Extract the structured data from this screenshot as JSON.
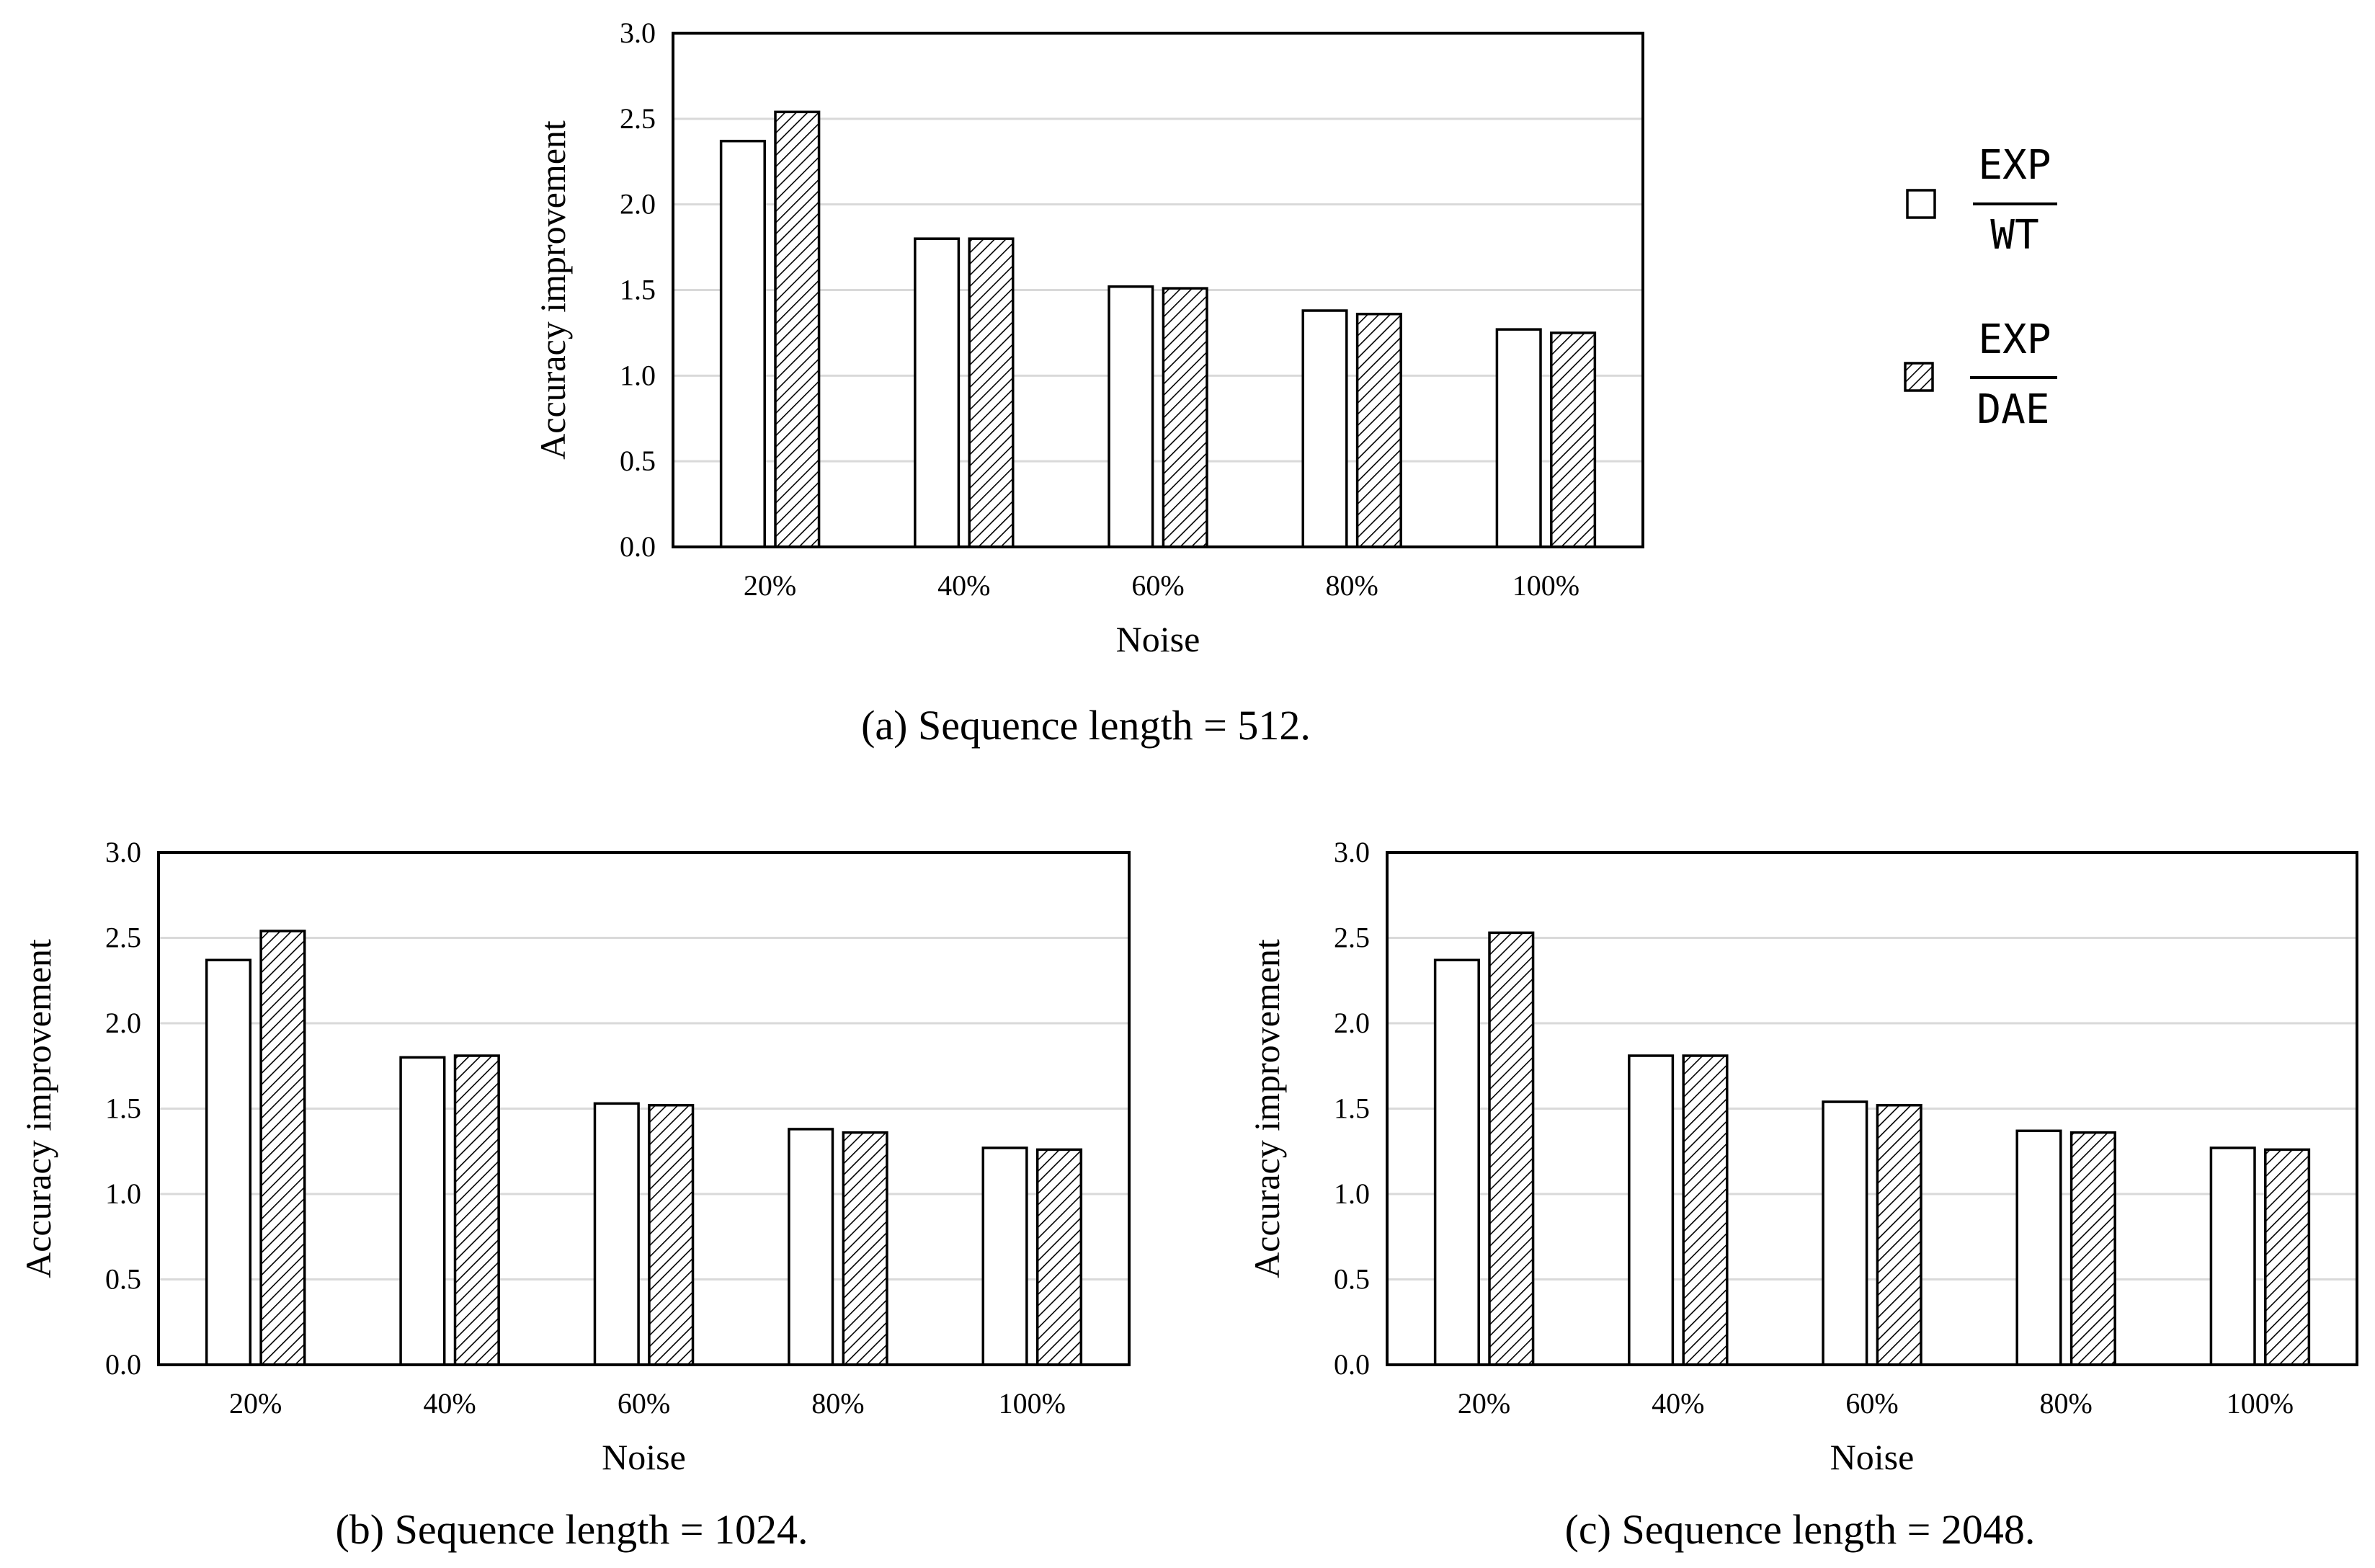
{
  "legend": [
    {
      "numerator": "EXP",
      "denominator": "WT",
      "fill": "white"
    },
    {
      "numerator": "EXP",
      "denominator": "DAE",
      "fill": "hatched"
    }
  ],
  "chart_data": [
    {
      "type": "bar",
      "caption": "(a) Sequence length = 512.",
      "xlabel": "Noise",
      "ylabel": "Accuracy improvement",
      "ylim": [
        0,
        3.0
      ],
      "yticks": [
        "0.0",
        "0.5",
        "1.0",
        "1.5",
        "2.0",
        "2.5",
        "3.0"
      ],
      "categories": [
        "20%",
        "40%",
        "60%",
        "80%",
        "100%"
      ],
      "series": [
        {
          "name": "EXP/WT",
          "values": [
            2.37,
            1.8,
            1.52,
            1.38,
            1.27
          ]
        },
        {
          "name": "EXP/DAE",
          "values": [
            2.54,
            1.8,
            1.51,
            1.36,
            1.25
          ]
        }
      ]
    },
    {
      "type": "bar",
      "caption": "(b) Sequence length = 1024.",
      "xlabel": "Noise",
      "ylabel": "Accuracy improvement",
      "ylim": [
        0,
        3.0
      ],
      "yticks": [
        "0.0",
        "0.5",
        "1.0",
        "1.5",
        "2.0",
        "2.5",
        "3.0"
      ],
      "categories": [
        "20%",
        "40%",
        "60%",
        "80%",
        "100%"
      ],
      "series": [
        {
          "name": "EXP/WT",
          "values": [
            2.37,
            1.8,
            1.53,
            1.38,
            1.27
          ]
        },
        {
          "name": "EXP/DAE",
          "values": [
            2.54,
            1.81,
            1.52,
            1.36,
            1.26
          ]
        }
      ]
    },
    {
      "type": "bar",
      "caption": "(c) Sequence length = 2048.",
      "xlabel": "Noise",
      "ylabel": "Accuracy improvement",
      "ylim": [
        0,
        3.0
      ],
      "yticks": [
        "0.0",
        "0.5",
        "1.0",
        "1.5",
        "2.0",
        "2.5",
        "3.0"
      ],
      "categories": [
        "20%",
        "40%",
        "60%",
        "80%",
        "100%"
      ],
      "series": [
        {
          "name": "EXP/WT",
          "values": [
            2.37,
            1.81,
            1.54,
            1.37,
            1.27
          ]
        },
        {
          "name": "EXP/DAE",
          "values": [
            2.53,
            1.81,
            1.52,
            1.36,
            1.26
          ]
        }
      ]
    }
  ]
}
